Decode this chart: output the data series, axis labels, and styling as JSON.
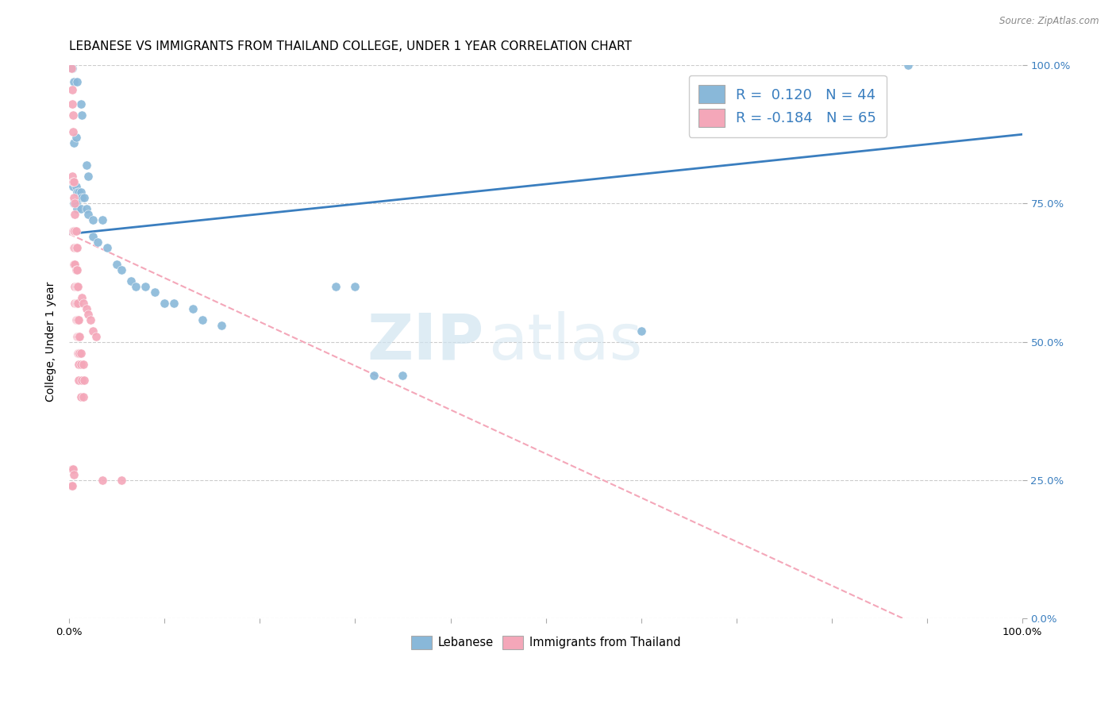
{
  "title": "LEBANESE VS IMMIGRANTS FROM THAILAND COLLEGE, UNDER 1 YEAR CORRELATION CHART",
  "source": "Source: ZipAtlas.com",
  "ylabel": "College, Under 1 year",
  "ytick_vals": [
    0.0,
    0.25,
    0.5,
    0.75,
    1.0
  ],
  "ytick_labels": [
    "0.0%",
    "25.0%",
    "50.0%",
    "75.0%",
    "100.0%"
  ],
  "xlim": [
    0.0,
    1.0
  ],
  "ylim": [
    0.0,
    1.0
  ],
  "watermark_line1": "ZIP",
  "watermark_line2": "atlas",
  "legend_blue_label": "Lebanese",
  "legend_pink_label": "Immigrants from Thailand",
  "R_blue": 0.12,
  "N_blue": 44,
  "R_pink": -0.184,
  "N_pink": 65,
  "blue_color": "#89b8d9",
  "pink_color": "#f4a7b9",
  "blue_line_color": "#3a7ebf",
  "pink_line_color": "#f4a7b9",
  "blue_scatter": [
    [
      0.003,
      0.995
    ],
    [
      0.005,
      0.97
    ],
    [
      0.008,
      0.97
    ],
    [
      0.012,
      0.93
    ],
    [
      0.013,
      0.91
    ],
    [
      0.005,
      0.86
    ],
    [
      0.007,
      0.87
    ],
    [
      0.018,
      0.82
    ],
    [
      0.02,
      0.8
    ],
    [
      0.004,
      0.78
    ],
    [
      0.007,
      0.78
    ],
    [
      0.008,
      0.77
    ],
    [
      0.01,
      0.77
    ],
    [
      0.012,
      0.77
    ],
    [
      0.013,
      0.76
    ],
    [
      0.016,
      0.76
    ],
    [
      0.005,
      0.75
    ],
    [
      0.007,
      0.75
    ],
    [
      0.008,
      0.74
    ],
    [
      0.012,
      0.74
    ],
    [
      0.018,
      0.74
    ],
    [
      0.02,
      0.73
    ],
    [
      0.025,
      0.72
    ],
    [
      0.035,
      0.72
    ],
    [
      0.025,
      0.69
    ],
    [
      0.03,
      0.68
    ],
    [
      0.04,
      0.67
    ],
    [
      0.05,
      0.64
    ],
    [
      0.055,
      0.63
    ],
    [
      0.065,
      0.61
    ],
    [
      0.07,
      0.6
    ],
    [
      0.08,
      0.6
    ],
    [
      0.09,
      0.59
    ],
    [
      0.1,
      0.57
    ],
    [
      0.11,
      0.57
    ],
    [
      0.13,
      0.56
    ],
    [
      0.14,
      0.54
    ],
    [
      0.16,
      0.53
    ],
    [
      0.28,
      0.6
    ],
    [
      0.3,
      0.6
    ],
    [
      0.32,
      0.44
    ],
    [
      0.35,
      0.44
    ],
    [
      0.6,
      0.52
    ],
    [
      0.88,
      1.0
    ]
  ],
  "pink_scatter": [
    [
      0.002,
      0.995
    ],
    [
      0.003,
      0.955
    ],
    [
      0.003,
      0.93
    ],
    [
      0.004,
      0.91
    ],
    [
      0.004,
      0.88
    ],
    [
      0.003,
      0.8
    ],
    [
      0.004,
      0.79
    ],
    [
      0.005,
      0.79
    ],
    [
      0.005,
      0.76
    ],
    [
      0.006,
      0.75
    ],
    [
      0.006,
      0.73
    ],
    [
      0.004,
      0.7
    ],
    [
      0.005,
      0.7
    ],
    [
      0.006,
      0.7
    ],
    [
      0.007,
      0.7
    ],
    [
      0.005,
      0.67
    ],
    [
      0.006,
      0.67
    ],
    [
      0.007,
      0.67
    ],
    [
      0.008,
      0.67
    ],
    [
      0.005,
      0.64
    ],
    [
      0.006,
      0.64
    ],
    [
      0.007,
      0.63
    ],
    [
      0.008,
      0.63
    ],
    [
      0.006,
      0.6
    ],
    [
      0.007,
      0.6
    ],
    [
      0.008,
      0.6
    ],
    [
      0.009,
      0.6
    ],
    [
      0.006,
      0.57
    ],
    [
      0.007,
      0.57
    ],
    [
      0.008,
      0.57
    ],
    [
      0.009,
      0.57
    ],
    [
      0.007,
      0.54
    ],
    [
      0.008,
      0.54
    ],
    [
      0.009,
      0.54
    ],
    [
      0.01,
      0.54
    ],
    [
      0.008,
      0.51
    ],
    [
      0.009,
      0.51
    ],
    [
      0.01,
      0.51
    ],
    [
      0.011,
      0.51
    ],
    [
      0.009,
      0.48
    ],
    [
      0.01,
      0.48
    ],
    [
      0.011,
      0.48
    ],
    [
      0.012,
      0.48
    ],
    [
      0.01,
      0.46
    ],
    [
      0.012,
      0.46
    ],
    [
      0.015,
      0.46
    ],
    [
      0.01,
      0.43
    ],
    [
      0.013,
      0.43
    ],
    [
      0.016,
      0.43
    ],
    [
      0.012,
      0.4
    ],
    [
      0.015,
      0.4
    ],
    [
      0.013,
      0.58
    ],
    [
      0.015,
      0.57
    ],
    [
      0.018,
      0.56
    ],
    [
      0.02,
      0.55
    ],
    [
      0.022,
      0.54
    ],
    [
      0.025,
      0.52
    ],
    [
      0.028,
      0.51
    ],
    [
      0.035,
      0.25
    ],
    [
      0.055,
      0.25
    ],
    [
      0.003,
      0.27
    ],
    [
      0.004,
      0.27
    ],
    [
      0.005,
      0.26
    ],
    [
      0.002,
      0.24
    ],
    [
      0.003,
      0.24
    ]
  ],
  "blue_line_x": [
    0.0,
    1.0
  ],
  "blue_line_y": [
    0.695,
    0.875
  ],
  "pink_line_x": [
    0.0,
    0.875
  ],
  "pink_line_y": [
    0.695,
    0.0
  ],
  "title_fontsize": 11,
  "axis_label_fontsize": 10,
  "tick_fontsize": 9.5,
  "legend_fontsize": 13
}
